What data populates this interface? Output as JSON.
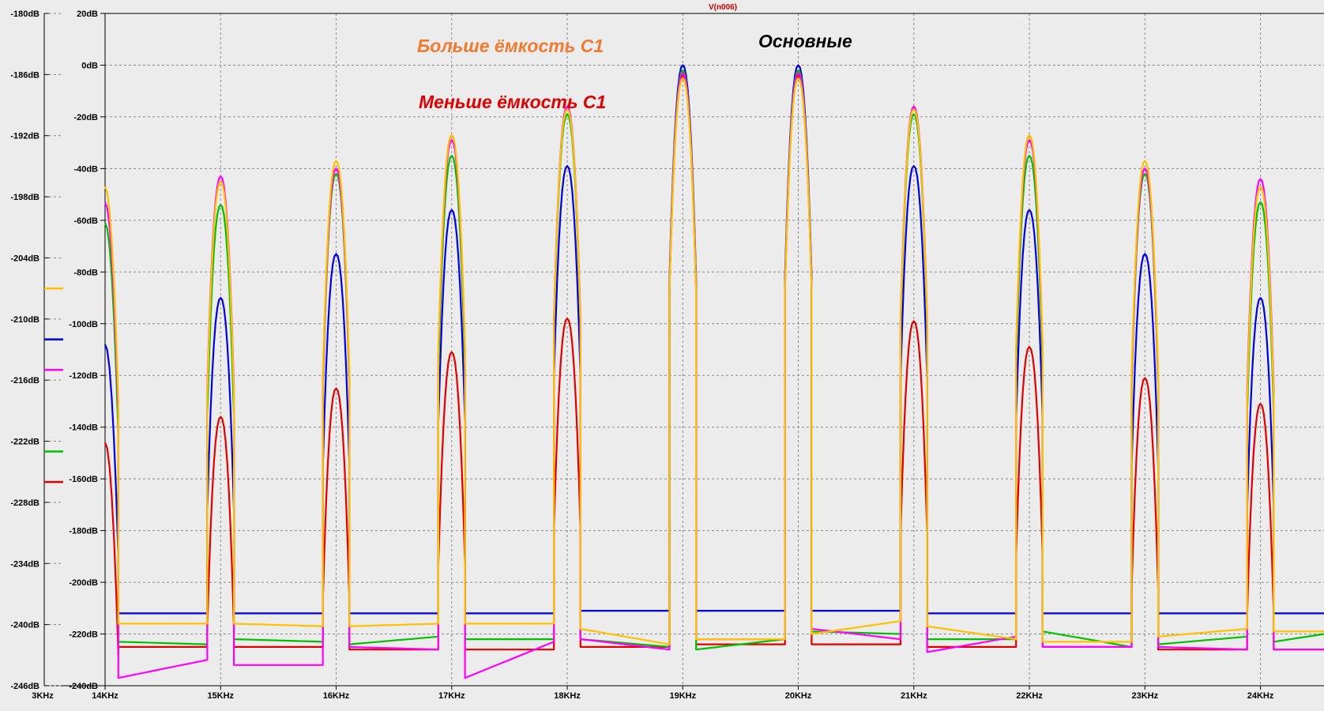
{
  "title": "V(n006)",
  "colors": {
    "background": "#ececec",
    "grid": "#8a8a8a",
    "title": "#d00000",
    "annotation_orange": "#f07a30",
    "annotation_red": "#e00000",
    "annotation_black": "#000000"
  },
  "annotations": {
    "more_c1": "Больше ёмкость С1",
    "less_c1": "Меньше ёмкость С1",
    "main": "Основные"
  },
  "left_axis": {
    "labels": [
      "-180dB",
      "-186dB",
      "-192dB",
      "-198dB",
      "-204dB",
      "-210dB",
      "-216dB",
      "-222dB",
      "-228dB",
      "-234dB",
      "-240dB",
      "-246dB"
    ],
    "bottom_label": "3KHz"
  },
  "markers": [
    {
      "color": "#ffc000",
      "level": -207
    },
    {
      "color": "#0000e0",
      "level": -212
    },
    {
      "color": "#ff00ff",
      "level": -215
    },
    {
      "color": "#00c000",
      "level": -223
    },
    {
      "color": "#e00000",
      "level": -226
    }
  ],
  "chart_data": {
    "type": "line",
    "title": "V(n006)",
    "xlabel": "",
    "ylabel": "",
    "x_unit": "KHz",
    "y_unit": "dB",
    "xlim": [
      14,
      24.55
    ],
    "ylim": [
      -240,
      20
    ],
    "grid": true,
    "x_ticks": [
      14,
      15,
      16,
      17,
      18,
      19,
      20,
      21,
      22,
      23,
      24
    ],
    "x_tick_labels": [
      "14KHz",
      "15KHz",
      "16KHz",
      "17KHz",
      "18KHz",
      "19KHz",
      "20KHz",
      "21KHz",
      "22KHz",
      "23KHz",
      "24KHz"
    ],
    "y_ticks": [
      20,
      0,
      -20,
      -40,
      -60,
      -80,
      -100,
      -120,
      -140,
      -160,
      -180,
      -200,
      -220,
      -240
    ],
    "y_tick_labels": [
      "20dB",
      "0dB",
      "-20dB",
      "-40dB",
      "-60dB",
      "-80dB",
      "-100dB",
      "-120dB",
      "-140dB",
      "-160dB",
      "-180dB",
      "-200dB",
      "-220dB",
      "-240dB"
    ],
    "peak_frequencies": [
      14,
      15,
      16,
      17,
      18,
      19,
      20,
      21,
      22,
      23,
      24
    ],
    "series": [
      {
        "color": "#e00000",
        "peaks": [
          -146,
          -136,
          -125,
          -111,
          -98,
          -4,
          -4,
          -99,
          -109,
          -121,
          -131
        ],
        "floors": [
          [
            -225,
            -225
          ],
          [
            -225,
            -225
          ],
          [
            -226,
            -226
          ],
          [
            -226,
            -226
          ],
          [
            -225,
            -225
          ],
          [
            -224,
            -224
          ],
          [
            -224,
            -224
          ],
          [
            -225,
            -225
          ],
          [
            -225,
            -225
          ],
          [
            -226,
            -226
          ],
          [
            -226,
            -226
          ]
        ]
      },
      {
        "color": "#0000e0",
        "peaks": [
          -108,
          -90,
          -73,
          -56,
          -39,
          0,
          0,
          -39,
          -56,
          -73,
          -90
        ],
        "floors": [
          [
            -212,
            -212
          ],
          [
            -212,
            -212
          ],
          [
            -212,
            -212
          ],
          [
            -212,
            -212
          ],
          [
            -211,
            -211
          ],
          [
            -211,
            -211
          ],
          [
            -211,
            -211
          ],
          [
            -212,
            -212
          ],
          [
            -212,
            -212
          ],
          [
            -212,
            -212
          ],
          [
            -212,
            -212
          ]
        ]
      },
      {
        "color": "#00c000",
        "peaks": [
          -61,
          -54,
          -42,
          -35,
          -19,
          -2,
          -2,
          -19,
          -35,
          -42,
          -53
        ],
        "floors": [
          [
            -223,
            -224
          ],
          [
            -222,
            -223
          ],
          [
            -224,
            -221
          ],
          [
            -222,
            -222
          ],
          [
            -222,
            -225
          ],
          [
            -226,
            -222
          ],
          [
            -219,
            -220
          ],
          [
            -222,
            -222
          ],
          [
            -219,
            -225
          ],
          [
            -224,
            -221
          ],
          [
            -223,
            -220
          ]
        ]
      },
      {
        "color": "#ff00ff",
        "peaks": [
          -53,
          -43,
          -40,
          -29,
          -16,
          -3,
          -3,
          -16,
          -29,
          -40,
          -44
        ],
        "floors": [
          [
            -237,
            -230
          ],
          [
            -232,
            -232
          ],
          [
            -225,
            -226
          ],
          [
            -237,
            -223
          ],
          [
            -222,
            -226
          ],
          [
            -222,
            -222
          ],
          [
            -218,
            -222
          ],
          [
            -227,
            -221
          ],
          [
            -225,
            -225
          ],
          [
            -225,
            -226
          ],
          [
            -226,
            -226
          ]
        ]
      },
      {
        "color": "#ffc000",
        "peaks": [
          -47,
          -45,
          -37,
          -27,
          -17,
          -5,
          -5,
          -17,
          -27,
          -37,
          -47
        ],
        "floors": [
          [
            -216,
            -216
          ],
          [
            -216,
            -217
          ],
          [
            -217,
            -216
          ],
          [
            -216,
            -216
          ],
          [
            -218,
            -224
          ],
          [
            -222,
            -222
          ],
          [
            -220,
            -215
          ],
          [
            -217,
            -222
          ],
          [
            -223,
            -223
          ],
          [
            -221,
            -218
          ],
          [
            -219,
            -219
          ]
        ]
      }
    ]
  }
}
